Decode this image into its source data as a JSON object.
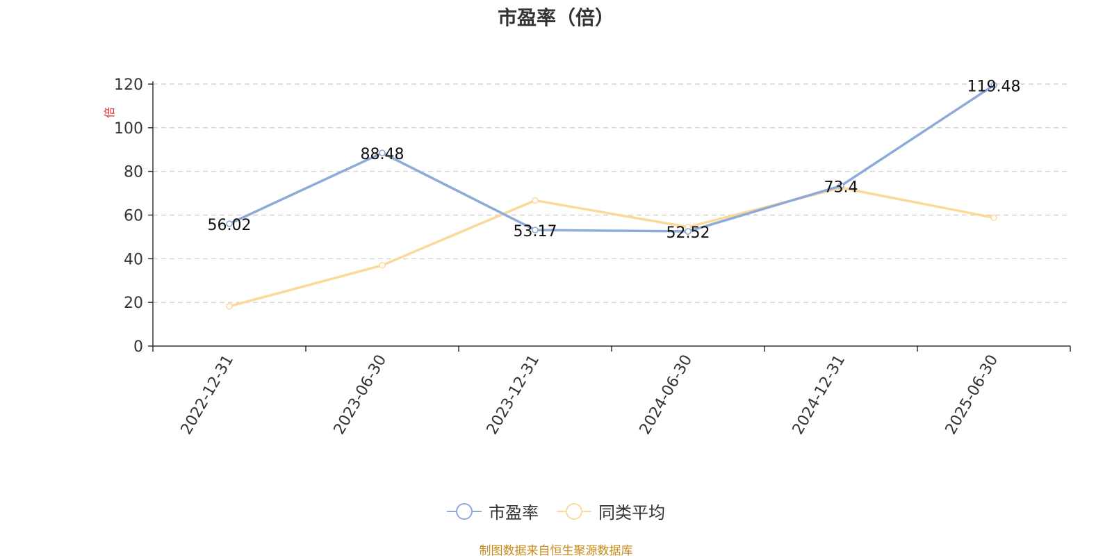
{
  "chart_data": {
    "type": "line",
    "title": "市盈率（倍）",
    "ylabel": "倍",
    "categories": [
      "2022-12-31",
      "2023-06-30",
      "2023-12-31",
      "2024-06-30",
      "2024-12-31",
      "2025-06-30"
    ],
    "ylim": [
      0,
      120
    ],
    "yticks": [
      0,
      20,
      40,
      60,
      80,
      100,
      120
    ],
    "grid": true,
    "legend_position": "bottom-center",
    "series": [
      {
        "name": "市盈率",
        "color": "#8eaad8",
        "values": [
          56.02,
          88.48,
          53.17,
          52.52,
          73.4,
          119.48
        ],
        "labels": [
          "56.02",
          "88.48",
          "53.17",
          "52.52",
          "73.4",
          "119.48"
        ]
      },
      {
        "name": "同类平均",
        "color": "#fbd99a",
        "values": [
          18.2,
          37.0,
          66.7,
          54.5,
          72.5,
          58.8
        ]
      }
    ],
    "source": "制图数据来自恒生聚源数据库"
  }
}
